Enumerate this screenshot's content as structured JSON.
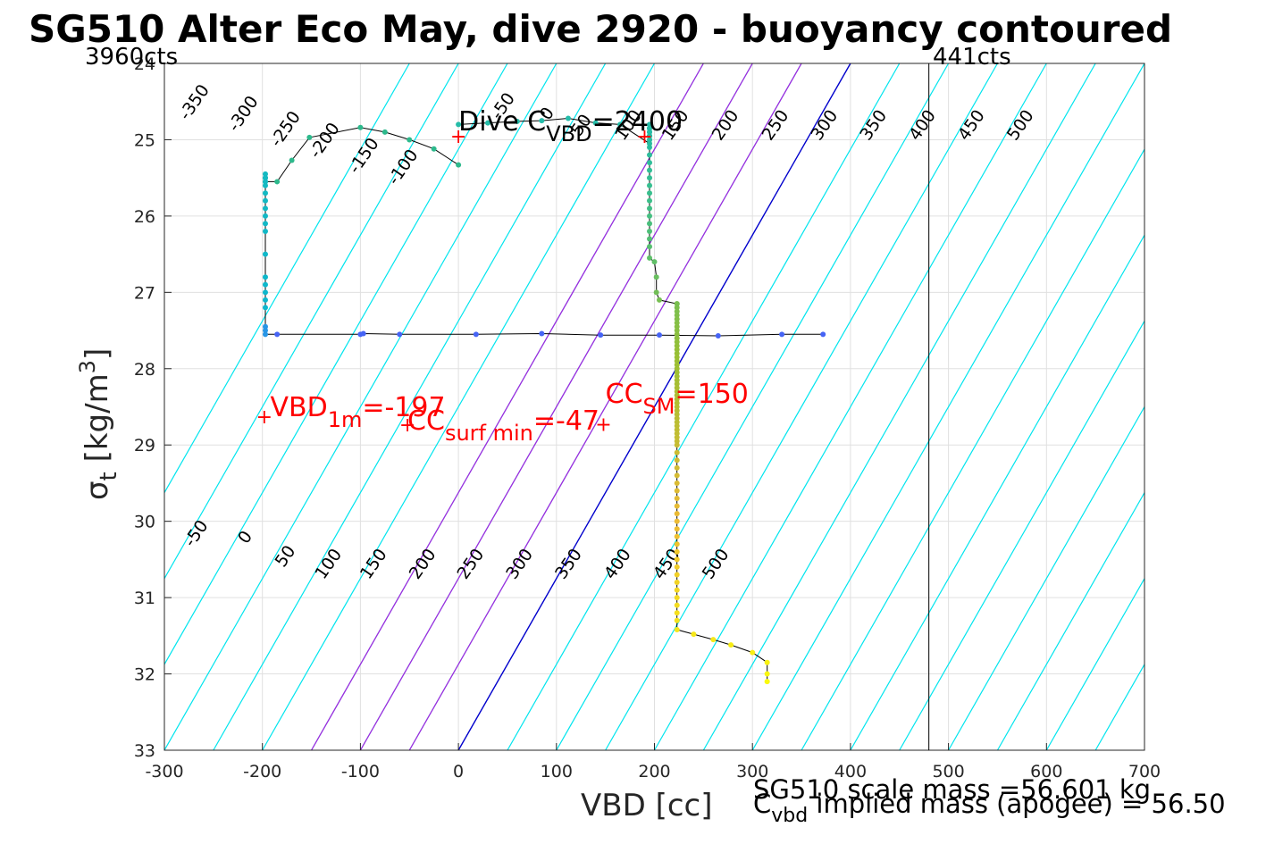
{
  "chart_data": {
    "type": "scatter",
    "title": "SG510 Alter Eco May, dive 2920 - buoyancy contoured",
    "xlabel": "VBD [cc]",
    "ylabel_main": "σ",
    "ylabel_sub": "t",
    "ylabel_unit": " [kg/m",
    "ylabel_sup": "3",
    "ylabel_close": "]",
    "xlim": [
      -300,
      700
    ],
    "ylim": [
      24,
      33
    ],
    "y_reversed": true,
    "grid": true,
    "x_ticks": [
      -300,
      -200,
      -100,
      0,
      100,
      200,
      300,
      400,
      500,
      600,
      700
    ],
    "y_ticks": [
      24,
      25,
      26,
      27,
      28,
      29,
      30,
      31,
      32,
      33
    ],
    "counts_left": "3960cts",
    "counts_right": "441cts",
    "counts_right_x": 480,
    "contour_offsets_cyan": [
      -450,
      -400,
      -350,
      -300,
      -250,
      -200,
      -150,
      -100,
      -50,
      50,
      100,
      150,
      200,
      250,
      300,
      350,
      400,
      450,
      500,
      550,
      600,
      650,
      700,
      750,
      800,
      850,
      900
    ],
    "contour_offset_blue": 0,
    "contour_offsets_purple": [
      -150,
      -100,
      -50
    ],
    "contour_labels_top": [
      {
        "text": "-350",
        "x": -265,
        "y": 24.55
      },
      {
        "text": "-300",
        "x": -215,
        "y": 24.7
      },
      {
        "text": "-250",
        "x": -172,
        "y": 24.9
      },
      {
        "text": "-200",
        "x": -132,
        "y": 25.05
      },
      {
        "text": "-150",
        "x": -92,
        "y": 25.25
      },
      {
        "text": "-100",
        "x": -52,
        "y": 25.4
      },
      {
        "text": "-50",
        "x": 50,
        "y": 24.6
      },
      {
        "text": "0",
        "x": 95,
        "y": 24.7
      },
      {
        "text": "50",
        "x": 130,
        "y": 24.85
      },
      {
        "text": "100",
        "x": 178,
        "y": 24.85
      },
      {
        "text": "150",
        "x": 226,
        "y": 24.85
      },
      {
        "text": "200",
        "x": 277,
        "y": 24.85
      },
      {
        "text": "250",
        "x": 328,
        "y": 24.85
      },
      {
        "text": "300",
        "x": 378,
        "y": 24.85
      },
      {
        "text": "350",
        "x": 428,
        "y": 24.85
      },
      {
        "text": "400",
        "x": 478,
        "y": 24.85
      },
      {
        "text": "450",
        "x": 528,
        "y": 24.85
      },
      {
        "text": "500",
        "x": 578,
        "y": 24.85
      }
    ],
    "contour_labels_bottom": [
      {
        "text": "-50",
        "x": -263,
        "y": 30.2
      },
      {
        "text": "0",
        "x": -213,
        "y": 30.25
      },
      {
        "text": "50",
        "x": -172,
        "y": 30.5
      },
      {
        "text": "100",
        "x": -128,
        "y": 30.6
      },
      {
        "text": "150",
        "x": -82,
        "y": 30.6
      },
      {
        "text": "200",
        "x": -32,
        "y": 30.6
      },
      {
        "text": "250",
        "x": 17,
        "y": 30.6
      },
      {
        "text": "300",
        "x": 67,
        "y": 30.6
      },
      {
        "text": "350",
        "x": 117,
        "y": 30.6
      },
      {
        "text": "400",
        "x": 167,
        "y": 30.6
      },
      {
        "text": "450",
        "x": 217,
        "y": 30.6
      },
      {
        "text": "500",
        "x": 267,
        "y": 30.6
      }
    ],
    "dive_series": {
      "name": "dive",
      "x": [
        372,
        330,
        265,
        205,
        145,
        85,
        18,
        -60,
        -97,
        -100,
        -185,
        -197,
        -197,
        -197,
        -197,
        -197,
        -197,
        -197,
        -197,
        -197,
        -197,
        -197,
        -197,
        -197,
        -197,
        -197,
        -197,
        -197,
        -197,
        -197,
        -197,
        -197,
        -185,
        -170,
        -152,
        -100,
        -75,
        -50,
        -25,
        0
      ],
      "y": [
        27.55,
        27.55,
        27.57,
        27.56,
        27.56,
        27.54,
        27.55,
        27.55,
        27.54,
        27.55,
        27.55,
        27.55,
        27.5,
        27.45,
        27.2,
        27.1,
        27.0,
        26.9,
        26.8,
        26.5,
        26.2,
        26.1,
        26.0,
        25.9,
        25.8,
        25.7,
        25.6,
        25.55,
        25.5,
        25.45,
        25.5,
        25.55,
        25.55,
        25.27,
        24.97,
        24.84,
        24.9,
        25.0,
        25.12,
        25.33
      ]
    },
    "climb_series": {
      "name": "climb",
      "x": [
        315,
        315,
        315,
        300,
        278,
        260,
        240,
        223,
        223,
        223,
        223,
        223,
        223,
        223,
        223,
        223,
        223,
        223,
        223,
        223,
        223,
        223,
        223,
        223,
        223,
        223,
        223,
        223,
        223,
        223,
        223,
        223,
        223,
        223,
        223,
        223,
        223,
        223,
        223,
        223,
        223,
        223,
        223,
        223,
        223,
        223,
        223,
        223,
        223,
        223,
        223,
        223,
        223,
        223,
        223,
        223,
        223,
        223,
        223,
        223,
        223,
        223,
        223,
        223,
        223,
        223,
        223,
        223,
        223,
        223,
        205,
        202,
        202,
        200,
        195,
        195,
        195,
        195,
        195,
        195,
        195,
        195,
        195,
        195,
        195,
        195,
        195,
        195,
        195,
        195,
        195,
        195,
        195,
        195,
        195,
        195,
        195,
        195,
        195,
        165,
        140,
        112,
        85,
        60,
        30,
        0
      ],
      "y": [
        32.1,
        32.0,
        31.85,
        31.72,
        31.62,
        31.55,
        31.48,
        31.42,
        31.3,
        31.2,
        31.1,
        31.0,
        30.9,
        30.8,
        30.7,
        30.6,
        30.5,
        30.4,
        30.3,
        30.2,
        30.1,
        30.0,
        29.9,
        29.8,
        29.7,
        29.6,
        29.5,
        29.4,
        29.3,
        29.2,
        29.1,
        29.0,
        28.9,
        28.8,
        28.7,
        28.6,
        28.5,
        28.4,
        28.3,
        28.2,
        28.1,
        28.0,
        27.9,
        27.8,
        27.7,
        27.6,
        27.5,
        27.4,
        27.3,
        27.2,
        27.15,
        27.25,
        27.35,
        27.45,
        27.55,
        27.65,
        27.75,
        27.85,
        27.95,
        28.05,
        28.15,
        28.25,
        28.35,
        28.45,
        28.55,
        28.65,
        28.75,
        28.85,
        28.95,
        27.15,
        27.1,
        27.0,
        26.8,
        26.6,
        26.55,
        26.4,
        26.3,
        26.2,
        26.1,
        26.0,
        25.9,
        25.8,
        25.7,
        25.6,
        25.5,
        25.4,
        25.3,
        25.2,
        25.1,
        25.0,
        24.95,
        24.9,
        24.85,
        24.8,
        24.85,
        24.9,
        24.95,
        25.0,
        25.05,
        24.8,
        24.78,
        24.72,
        24.75,
        24.76,
        24.78,
        24.8
      ],
      "sorted_by_y": true
    },
    "markers": [
      {
        "text": "+",
        "x": -198,
        "y": 28.62
      },
      {
        "text": "+",
        "x": -52,
        "y": 28.73
      },
      {
        "text": "+",
        "x": 148,
        "y": 28.72
      },
      {
        "text": "+",
        "x": 0,
        "y": 24.95
      },
      {
        "text": "+",
        "x": 190,
        "y": 24.95
      }
    ],
    "annotations_red": [
      {
        "main": "VBD",
        "sub": "1m",
        "rest": "=-197",
        "x": -192,
        "y": 28.62
      },
      {
        "main": "CC",
        "sub": "surf min",
        "rest": "=-47",
        "x": -52,
        "y": 28.8
      },
      {
        "main": "CC",
        "sub": "SM",
        "rest": "=150",
        "x": 150,
        "y": 28.45
      }
    ],
    "annotation_dive": {
      "main": "Dive C",
      "sub": "VBD",
      "rest": "=2400",
      "x": 0,
      "y": 24.88
    },
    "footer_line1": "SG510 scale mass =56.601 kg",
    "footer_line2_main": "C",
    "footer_line2_sub": "vbd",
    "footer_line2_rest": " implied mass (apogee) = 56.50",
    "colors": {
      "cyan": "#00e5ee",
      "blue": "#0000cc",
      "purple": "#aa22dd",
      "red": "#ff0000",
      "grid": "#e0e0e0",
      "axis": "#262626"
    }
  }
}
